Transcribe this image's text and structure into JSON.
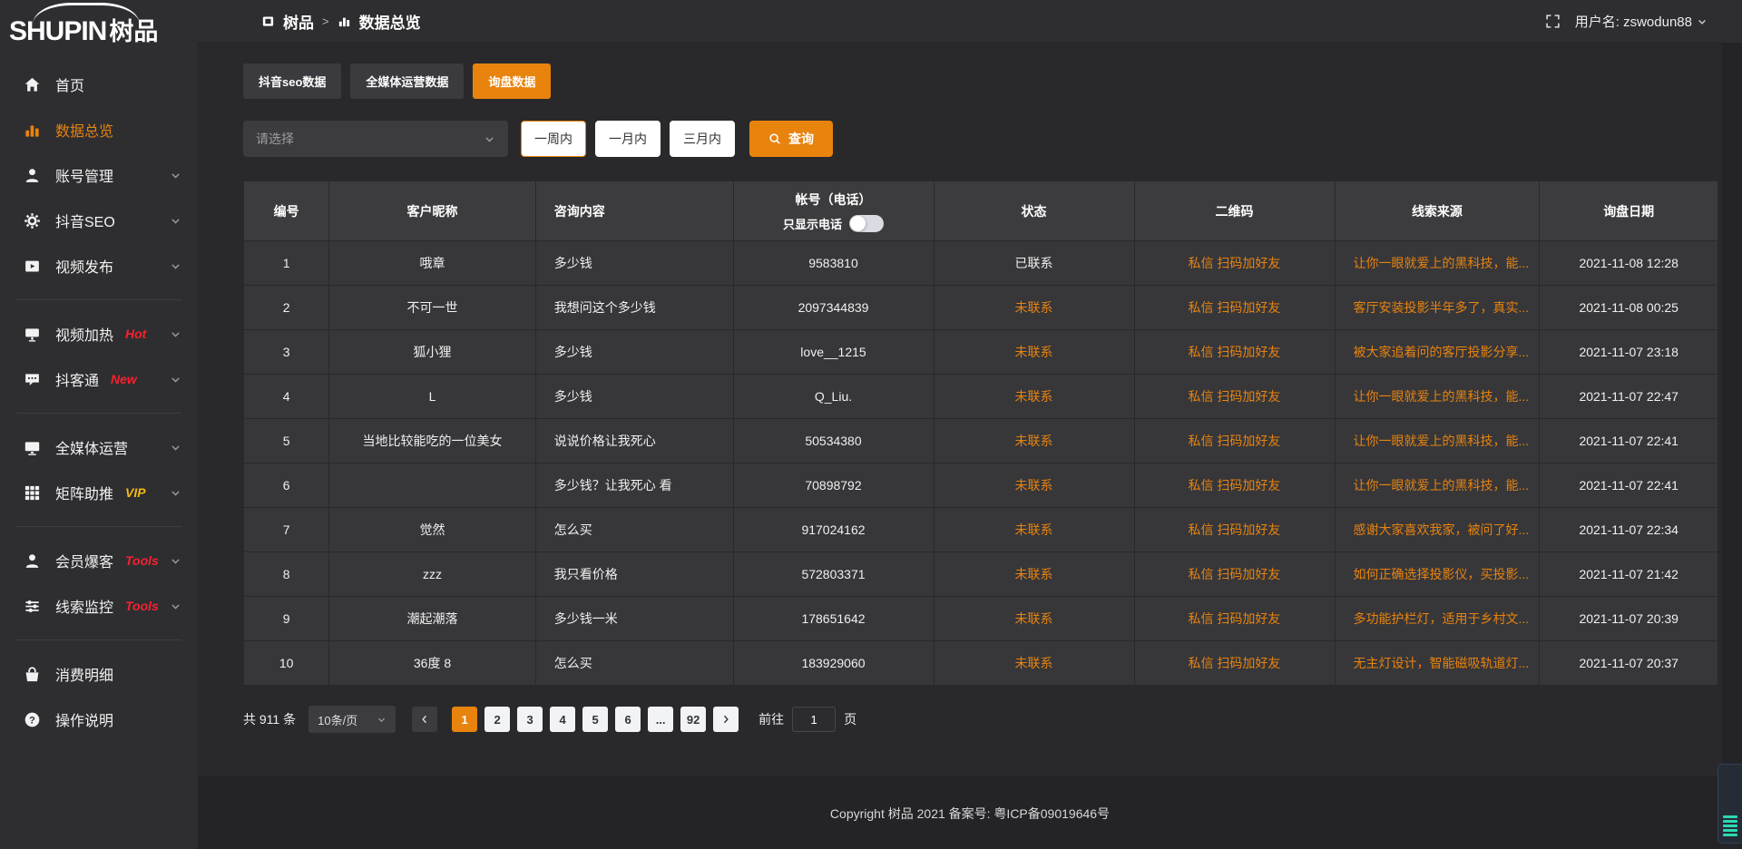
{
  "logo": {
    "en": "SHUPIN",
    "cn": "树品"
  },
  "topbar": {
    "breadcrumb": {
      "app": "树品",
      "separator": ">",
      "page": "数据总览"
    },
    "username": "用户名: zswodun88"
  },
  "sidebar": {
    "items": [
      {
        "id": "home",
        "icon": "home-icon",
        "label": "首页"
      },
      {
        "id": "data-overview",
        "icon": "chart-icon",
        "label": "数据总览",
        "active": true
      },
      {
        "id": "account-management",
        "icon": "user-icon",
        "label": "账号管理",
        "chevron": true
      },
      {
        "id": "douyin-seo",
        "icon": "gear-icon",
        "label": "抖音SEO",
        "chevron": true
      },
      {
        "id": "video-publish",
        "icon": "publish-icon",
        "label": "视频发布",
        "chevron": true
      },
      {
        "divider": true
      },
      {
        "id": "video-heating",
        "icon": "heat-icon",
        "label": "视频加热",
        "badge": "Hot",
        "badge_color": "#f5222d",
        "chevron": true
      },
      {
        "id": "douketong",
        "icon": "chat-icon",
        "label": "抖客通",
        "badge": "New",
        "badge_color": "#f5222d",
        "chevron": true
      },
      {
        "divider": true
      },
      {
        "id": "media-operation",
        "icon": "monitor-icon",
        "label": "全媒体运营",
        "chevron": true
      },
      {
        "id": "matrix-boost",
        "icon": "grid-icon",
        "label": "矩阵助推",
        "badge": "VIP",
        "badge_color": "#f0b915",
        "chevron": true
      },
      {
        "divider": true
      },
      {
        "id": "member-baoke",
        "icon": "member-icon",
        "label": "会员爆客",
        "badge": "Tools",
        "badge_color": "#f5222d",
        "chevron": true
      },
      {
        "id": "clue-monitor",
        "icon": "sliders-icon",
        "label": "线索监控",
        "badge": "Tools",
        "badge_color": "#f5222d",
        "chevron": true
      },
      {
        "divider": true
      },
      {
        "id": "consumption-detail",
        "icon": "expense-icon",
        "label": "消费明细"
      },
      {
        "id": "operation-guide",
        "icon": "help-icon",
        "label": "操作说明"
      }
    ]
  },
  "tabs": [
    {
      "id": "douyin-seo-data",
      "label": "抖音seo数据",
      "active": false
    },
    {
      "id": "media-operation-data",
      "label": "全媒体运营数据",
      "active": false
    },
    {
      "id": "inquiry-data",
      "label": "询盘数据",
      "active": true
    }
  ],
  "filters": {
    "select_placeholder": "请选择",
    "ranges": [
      {
        "id": "week",
        "label": "一周内",
        "active": true
      },
      {
        "id": "month",
        "label": "一月内",
        "active": false
      },
      {
        "id": "quarter",
        "label": "三月内",
        "active": false
      }
    ],
    "query_label": "查询"
  },
  "table": {
    "headers": [
      "编号",
      "客户昵称",
      "咨询内容",
      "帐号（电话）",
      "状态",
      "二维码",
      "线索来源",
      "询盘日期"
    ],
    "phone_toggle_label": "只显示电话",
    "phone_toggle_on": false,
    "rows": [
      {
        "id": "1",
        "nickname": "哦章",
        "content": "多少钱",
        "account": "9583810",
        "status": "已联系",
        "contacted": true,
        "qrcode": "私信 扫码加好友",
        "source": "让你一眼就爱上的黑科技，能...",
        "date": "2021-11-08 12:28"
      },
      {
        "id": "2",
        "nickname": "不可一世",
        "content": "我想问这个多少钱",
        "account": "2097344839",
        "status": "未联系",
        "contacted": false,
        "qrcode": "私信 扫码加好友",
        "source": "客厅安装投影半年多了，真实...",
        "date": "2021-11-08 00:25"
      },
      {
        "id": "3",
        "nickname": "狐小狸",
        "content": "多少钱",
        "account": "love__1215",
        "status": "未联系",
        "contacted": false,
        "qrcode": "私信 扫码加好友",
        "source": "被大家追着问的客厅投影分享...",
        "date": "2021-11-07 23:18"
      },
      {
        "id": "4",
        "nickname": "L",
        "content": "多少钱",
        "account": "Q_Liu.",
        "status": "未联系",
        "contacted": false,
        "qrcode": "私信 扫码加好友",
        "source": "让你一眼就爱上的黑科技，能...",
        "date": "2021-11-07 22:47"
      },
      {
        "id": "5",
        "nickname": "当地比较能吃的一位美女",
        "content": "说说价格让我死心",
        "account": "50534380",
        "status": "未联系",
        "contacted": false,
        "qrcode": "私信 扫码加好友",
        "source": "让你一眼就爱上的黑科技，能...",
        "date": "2021-11-07 22:41"
      },
      {
        "id": "6",
        "nickname": "",
        "content": "多少钱？让我死心 看",
        "account": "70898792",
        "status": "未联系",
        "contacted": false,
        "qrcode": "私信 扫码加好友",
        "source": "让你一眼就爱上的黑科技，能...",
        "date": "2021-11-07 22:41"
      },
      {
        "id": "7",
        "nickname": "觉然",
        "content": "怎么买",
        "account": "917024162",
        "status": "未联系",
        "contacted": false,
        "qrcode": "私信 扫码加好友",
        "source": "感谢大家喜欢我家，被问了好...",
        "date": "2021-11-07 22:34"
      },
      {
        "id": "8",
        "nickname": "zzz",
        "content": "我只看价格",
        "account": "572803371",
        "status": "未联系",
        "contacted": false,
        "qrcode": "私信 扫码加好友",
        "source": "如何正确选择投影仪，买投影...",
        "date": "2021-11-07 21:42"
      },
      {
        "id": "9",
        "nickname": "潮起潮落",
        "content": "多少钱一米",
        "account": "178651642",
        "status": "未联系",
        "contacted": false,
        "qrcode": "私信 扫码加好友",
        "source": "多功能护栏灯，适用于乡村文...",
        "date": "2021-11-07 20:39"
      },
      {
        "id": "10",
        "nickname": "36度 8",
        "content": "怎么买",
        "account": "183929060",
        "status": "未联系",
        "contacted": false,
        "qrcode": "私信 扫码加好友",
        "source": "无主灯设计，智能磁吸轨道灯...",
        "date": "2021-11-07 20:37"
      }
    ]
  },
  "pagination": {
    "total_label": "共 911 条",
    "page_size_label": "10条/页",
    "pages": [
      "1",
      "2",
      "3",
      "4",
      "5",
      "6",
      "...",
      "92"
    ],
    "active_page": "1",
    "goto_label": "前往",
    "goto_value": "1",
    "goto_suffix": "页"
  },
  "footer": {
    "copyright": "Copyright 树品 2021 备案号: 粤ICP备09019646号"
  },
  "colors": {
    "accent": "#e8830e",
    "hot_badge": "#f5222d",
    "vip_badge": "#f0b915",
    "status_pending": "#e8830e"
  }
}
